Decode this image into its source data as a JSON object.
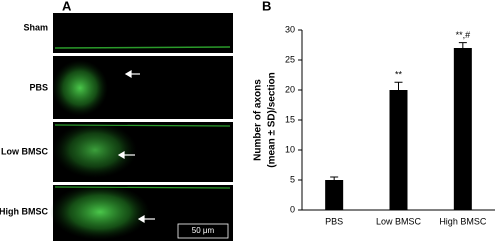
{
  "panel_a": {
    "label": "A",
    "rows": [
      "Sham",
      "PBS",
      "Low BMSC",
      "High BMSC"
    ],
    "scale_bar": "50 μm"
  },
  "chart_data": {
    "type": "bar",
    "panel_label": "B",
    "ylabel": [
      "Number of axons",
      "(mean ± SD)/section"
    ],
    "categories": [
      "PBS",
      "Low BMSC",
      "High BMSC"
    ],
    "values": [
      5,
      20,
      27
    ],
    "errors": [
      0.5,
      1.3,
      0.9
    ],
    "value_labels": [
      null,
      "**",
      "**,#"
    ],
    "color": "#000000",
    "ylim": [
      0,
      30
    ],
    "yticks": [
      0,
      5,
      10,
      15,
      20,
      25,
      30
    ],
    "grid": false
  }
}
